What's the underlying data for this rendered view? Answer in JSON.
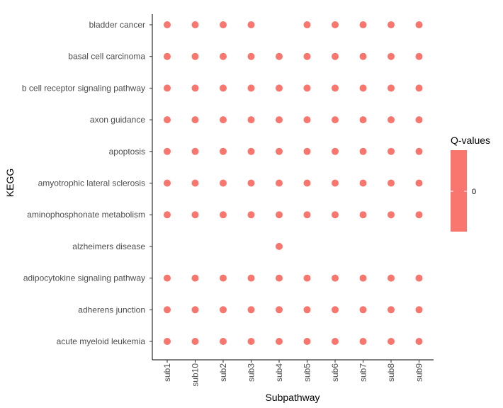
{
  "chart_data": {
    "type": "scatter",
    "xlabel": "Subpathway",
    "ylabel": "KEGG",
    "x_categories": [
      "sub1",
      "sub10",
      "sub2",
      "sub3",
      "sub4",
      "sub5",
      "sub6",
      "sub7",
      "sub8",
      "sub9"
    ],
    "y_categories": [
      "bladder cancer",
      "basal cell carcinoma",
      "b cell receptor signaling pathway",
      "axon guidance",
      "apoptosis",
      "amyotrophic lateral sclerosis",
      "aminophosphonate metabolism",
      "alzheimers disease",
      "adipocytokine signaling pathway",
      "adherens junction",
      "acute myeloid leukemia"
    ],
    "points": [
      {
        "y": "bladder cancer",
        "x": [
          "sub1",
          "sub10",
          "sub2",
          "sub3",
          "sub5",
          "sub6",
          "sub7",
          "sub8",
          "sub9"
        ]
      },
      {
        "y": "basal cell carcinoma",
        "x": [
          "sub1",
          "sub10",
          "sub2",
          "sub3",
          "sub4",
          "sub5",
          "sub6",
          "sub7",
          "sub8",
          "sub9"
        ]
      },
      {
        "y": "b cell receptor signaling pathway",
        "x": [
          "sub1",
          "sub10",
          "sub2",
          "sub3",
          "sub4",
          "sub5",
          "sub6",
          "sub7",
          "sub8",
          "sub9"
        ]
      },
      {
        "y": "axon guidance",
        "x": [
          "sub1",
          "sub10",
          "sub2",
          "sub3",
          "sub4",
          "sub5",
          "sub6",
          "sub7",
          "sub8",
          "sub9"
        ]
      },
      {
        "y": "apoptosis",
        "x": [
          "sub1",
          "sub10",
          "sub2",
          "sub3",
          "sub4",
          "sub5",
          "sub6",
          "sub7",
          "sub8",
          "sub9"
        ]
      },
      {
        "y": "amyotrophic lateral sclerosis",
        "x": [
          "sub1",
          "sub10",
          "sub2",
          "sub3",
          "sub4",
          "sub5",
          "sub6",
          "sub7",
          "sub8",
          "sub9"
        ]
      },
      {
        "y": "aminophosphonate metabolism",
        "x": [
          "sub1",
          "sub10",
          "sub2",
          "sub3",
          "sub4",
          "sub5",
          "sub6",
          "sub7",
          "sub8",
          "sub9"
        ]
      },
      {
        "y": "alzheimers disease",
        "x": [
          "sub4"
        ]
      },
      {
        "y": "adipocytokine signaling pathway",
        "x": [
          "sub1",
          "sub10",
          "sub2",
          "sub3",
          "sub4",
          "sub5",
          "sub6",
          "sub7",
          "sub8",
          "sub9"
        ]
      },
      {
        "y": "adherens junction",
        "x": [
          "sub1",
          "sub10",
          "sub2",
          "sub3",
          "sub4",
          "sub5",
          "sub6",
          "sub7",
          "sub8",
          "sub9"
        ]
      },
      {
        "y": "acute myeloid leukemia",
        "x": [
          "sub1",
          "sub10",
          "sub2",
          "sub3",
          "sub4",
          "sub5",
          "sub6",
          "sub7",
          "sub8",
          "sub9"
        ]
      }
    ],
    "q_value": 0,
    "point_color": "#f8766d",
    "grid": false,
    "legend": {
      "title": "Q-values",
      "placement": "right",
      "labels": [
        "0"
      ],
      "color": "#f8766d"
    }
  }
}
